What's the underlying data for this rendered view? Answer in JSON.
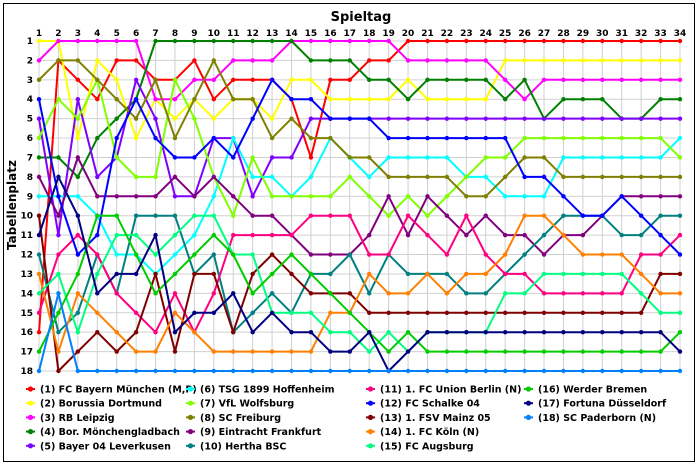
{
  "chart_data": {
    "type": "line",
    "title": "Spieltag",
    "xlabel": "Spieltag",
    "ylabel": "Tabellenplatz",
    "x": [
      1,
      2,
      3,
      4,
      5,
      6,
      7,
      8,
      9,
      10,
      11,
      12,
      13,
      14,
      15,
      16,
      17,
      18,
      19,
      20,
      21,
      22,
      23,
      24,
      25,
      26,
      27,
      28,
      29,
      30,
      31,
      32,
      33,
      34
    ],
    "xlim": [
      1,
      34
    ],
    "ylim": [
      18,
      1
    ],
    "y_reversed": true,
    "grid": true,
    "legend_position": "bottom",
    "series": [
      {
        "name": "(1) FC Bayern München (M,P)",
        "color": "#ff0000",
        "values": [
          16,
          2,
          3,
          4,
          2,
          2,
          3,
          3,
          2,
          4,
          3,
          3,
          3,
          4,
          7,
          3,
          3,
          2,
          2,
          1,
          1,
          1,
          1,
          1,
          1,
          1,
          1,
          1,
          1,
          1,
          1,
          1,
          1,
          1
        ]
      },
      {
        "name": "(2) Borussia Dortmund",
        "color": "#ffff00",
        "values": [
          1,
          1,
          6,
          2,
          3,
          6,
          4,
          5,
          4,
          5,
          4,
          4,
          5,
          3,
          3,
          4,
          4,
          4,
          4,
          3,
          4,
          4,
          4,
          4,
          2,
          2,
          2,
          2,
          2,
          2,
          2,
          2,
          2,
          2
        ]
      },
      {
        "name": "(3) RB Leipzig",
        "color": "#ff00ff",
        "values": [
          2,
          1,
          1,
          1,
          1,
          1,
          4,
          4,
          3,
          3,
          2,
          2,
          2,
          1,
          1,
          1,
          1,
          1,
          1,
          2,
          2,
          2,
          2,
          2,
          3,
          4,
          3,
          3,
          3,
          3,
          3,
          3,
          3,
          3
        ]
      },
      {
        "name": "(4) Bor. Mönchengladbach",
        "color": "#008000",
        "values": [
          7,
          7,
          8,
          6,
          5,
          4,
          1,
          1,
          1,
          1,
          1,
          1,
          1,
          1,
          2,
          2,
          2,
          3,
          3,
          4,
          3,
          3,
          3,
          3,
          4,
          3,
          5,
          4,
          4,
          4,
          5,
          5,
          4,
          4
        ]
      },
      {
        "name": "(5) Bayer 04 Leverkusen",
        "color": "#8000ff",
        "values": [
          5,
          11,
          4,
          8,
          7,
          3,
          5,
          9,
          9,
          6,
          6,
          9,
          7,
          7,
          5,
          5,
          5,
          5,
          5,
          5,
          5,
          5,
          5,
          5,
          5,
          5,
          5,
          5,
          5,
          5,
          5,
          5,
          5,
          5
        ]
      },
      {
        "name": "(6) TSG 1899 Hoffenheim",
        "color": "#00ffff",
        "values": [
          9,
          9,
          9,
          10,
          12,
          12,
          13,
          12,
          11,
          9,
          6,
          8,
          8,
          9,
          8,
          6,
          7,
          8,
          7,
          7,
          7,
          7,
          8,
          8,
          9,
          9,
          9,
          7,
          7,
          7,
          7,
          7,
          7,
          6
        ]
      },
      {
        "name": "(7) VfL Wolfsburg",
        "color": "#80ff00",
        "values": [
          6,
          4,
          5,
          3,
          7,
          8,
          8,
          3,
          5,
          8,
          10,
          7,
          9,
          9,
          9,
          9,
          8,
          9,
          10,
          9,
          10,
          9,
          8,
          7,
          7,
          6,
          6,
          6,
          6,
          6,
          6,
          6,
          6,
          7
        ]
      },
      {
        "name": "(8) SC Freiburg",
        "color": "#808000",
        "values": [
          3,
          2,
          2,
          3,
          4,
          5,
          3,
          6,
          4,
          2,
          4,
          4,
          6,
          5,
          6,
          6,
          7,
          7,
          8,
          8,
          8,
          8,
          9,
          9,
          8,
          7,
          7,
          8,
          8,
          8,
          8,
          8,
          8,
          8
        ]
      },
      {
        "name": "(9) Eintracht Frankfurt",
        "color": "#800080",
        "values": [
          8,
          10,
          7,
          9,
          9,
          9,
          9,
          8,
          9,
          8,
          9,
          10,
          10,
          11,
          12,
          12,
          12,
          11,
          9,
          11,
          9,
          10,
          11,
          10,
          11,
          11,
          12,
          11,
          11,
          10,
          9,
          9,
          9,
          9
        ]
      },
      {
        "name": "(10) Hertha BSC",
        "color": "#008080",
        "values": [
          12,
          16,
          15,
          12,
          14,
          10,
          10,
          10,
          13,
          12,
          16,
          15,
          14,
          15,
          13,
          13,
          12,
          14,
          12,
          13,
          13,
          13,
          14,
          14,
          13,
          12,
          11,
          10,
          10,
          10,
          11,
          11,
          10,
          10
        ]
      },
      {
        "name": "(11) 1. FC Union Berlin (N)",
        "color": "#ff0080",
        "values": [
          15,
          12,
          11,
          12,
          14,
          15,
          16,
          14,
          16,
          14,
          11,
          11,
          11,
          11,
          10,
          10,
          10,
          12,
          12,
          10,
          11,
          12,
          10,
          12,
          13,
          13,
          14,
          14,
          14,
          14,
          14,
          12,
          12,
          11
        ]
      },
      {
        "name": "(12) FC Schalke 04",
        "color": "#0000ff",
        "values": [
          4,
          9,
          12,
          11,
          6,
          4,
          6,
          7,
          7,
          6,
          7,
          5,
          3,
          4,
          4,
          5,
          5,
          5,
          6,
          6,
          6,
          6,
          6,
          6,
          6,
          8,
          8,
          9,
          10,
          10,
          9,
          10,
          11,
          12
        ]
      },
      {
        "name": "(13) 1. FSV Mainz 05",
        "color": "#800000",
        "values": [
          10,
          18,
          17,
          16,
          17,
          16,
          13,
          17,
          13,
          13,
          16,
          13,
          12,
          13,
          14,
          14,
          14,
          15,
          15,
          15,
          15,
          15,
          15,
          15,
          15,
          15,
          15,
          15,
          15,
          15,
          15,
          15,
          13,
          13
        ]
      },
      {
        "name": "(14) 1. FC Köln (N)",
        "color": "#ff8000",
        "values": [
          13,
          17,
          14,
          15,
          16,
          17,
          17,
          15,
          16,
          17,
          17,
          17,
          17,
          17,
          17,
          15,
          15,
          13,
          14,
          14,
          13,
          14,
          13,
          13,
          12,
          10,
          10,
          11,
          12,
          12,
          12,
          13,
          14,
          14
        ]
      },
      {
        "name": "(15) FC Augsburg",
        "color": "#00ff80",
        "values": [
          14,
          13,
          16,
          13,
          11,
          11,
          12,
          11,
          10,
          10,
          12,
          12,
          15,
          15,
          15,
          16,
          16,
          17,
          16,
          17,
          16,
          16,
          16,
          16,
          14,
          14,
          13,
          13,
          13,
          13,
          13,
          14,
          15,
          15
        ]
      },
      {
        "name": "(16) Werder Bremen",
        "color": "#00cc00",
        "values": [
          17,
          15,
          13,
          10,
          10,
          12,
          14,
          13,
          12,
          11,
          12,
          14,
          13,
          12,
          13,
          14,
          15,
          16,
          17,
          16,
          17,
          17,
          17,
          17,
          17,
          17,
          17,
          17,
          17,
          17,
          17,
          17,
          17,
          16
        ]
      },
      {
        "name": "(17) Fortuna Düsseldorf",
        "color": "#000080",
        "values": [
          11,
          8,
          10,
          14,
          13,
          13,
          11,
          16,
          15,
          15,
          14,
          16,
          15,
          16,
          16,
          17,
          17,
          16,
          18,
          17,
          16,
          16,
          16,
          16,
          16,
          16,
          16,
          16,
          16,
          16,
          16,
          16,
          16,
          17
        ]
      },
      {
        "name": "(18) SC Paderborn (N)",
        "color": "#0080ff",
        "values": [
          18,
          14,
          18,
          18,
          18,
          18,
          18,
          18,
          18,
          18,
          18,
          18,
          18,
          18,
          18,
          18,
          18,
          18,
          18,
          18,
          18,
          18,
          18,
          18,
          18,
          18,
          18,
          18,
          18,
          18,
          18,
          18,
          18,
          18
        ]
      }
    ]
  }
}
